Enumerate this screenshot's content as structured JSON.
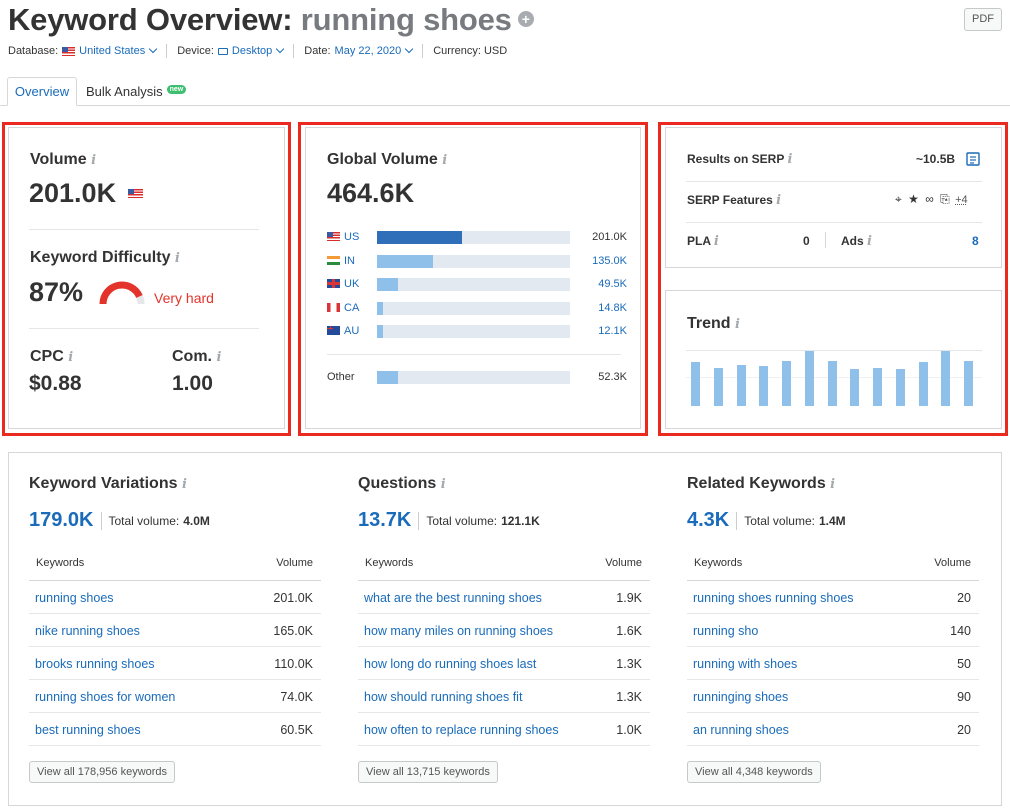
{
  "header": {
    "title_prefix": "Keyword Overview:",
    "keyword": "running shoes",
    "pdf_label": "PDF",
    "database_label": "Database:",
    "database_value": "United States",
    "device_label": "Device:",
    "device_value": "Desktop",
    "date_label": "Date:",
    "date_value": "May 22, 2020",
    "currency_label": "Currency: USD"
  },
  "tabs": {
    "overview": "Overview",
    "bulk": "Bulk Analysis",
    "bulk_badge": "new"
  },
  "volume": {
    "label": "Volume",
    "value": "201.0K",
    "kd_label": "Keyword Difficulty",
    "kd_value": "87%",
    "kd_text": "Very hard",
    "kd_fraction": 0.87,
    "cpc_label": "CPC",
    "cpc_value": "$0.88",
    "com_label": "Com.",
    "com_value": "1.00"
  },
  "global_volume": {
    "label": "Global Volume",
    "value": "464.6K",
    "countries": [
      {
        "code": "US",
        "display": "201.0K",
        "share": 0.44,
        "flag": "f-us",
        "highlight": true
      },
      {
        "code": "IN",
        "display": "135.0K",
        "share": 0.29,
        "flag": "f-in",
        "highlight": false
      },
      {
        "code": "UK",
        "display": "49.5K",
        "share": 0.11,
        "flag": "f-uk",
        "highlight": false
      },
      {
        "code": "CA",
        "display": "14.8K",
        "share": 0.03,
        "flag": "f-ca",
        "highlight": false
      },
      {
        "code": "AU",
        "display": "12.1K",
        "share": 0.03,
        "flag": "f-au",
        "highlight": false
      }
    ],
    "other_label": "Other",
    "other_display": "52.3K",
    "other_share": 0.11
  },
  "serp": {
    "results_label": "Results on SERP",
    "results_value": "~10.5B",
    "features_label": "SERP Features",
    "features_more": "+4",
    "pla_label": "PLA",
    "pla_value": "0",
    "ads_label": "Ads",
    "ads_value": "8"
  },
  "trend": {
    "label": "Trend",
    "values": [
      0.8,
      0.7,
      0.75,
      0.72,
      0.82,
      1.0,
      0.81,
      0.67,
      0.7,
      0.67,
      0.8,
      1.0,
      0.82
    ]
  },
  "sections": [
    {
      "title": "Keyword Variations",
      "count": "179.0K",
      "total_label": "Total volume:",
      "total_value": "4.0M",
      "col_keywords": "Keywords",
      "col_volume": "Volume",
      "rows": [
        {
          "keyword": "running shoes",
          "volume": "201.0K"
        },
        {
          "keyword": "nike running shoes",
          "volume": "165.0K"
        },
        {
          "keyword": "brooks running shoes",
          "volume": "110.0K"
        },
        {
          "keyword": "running shoes for women",
          "volume": "74.0K"
        },
        {
          "keyword": "best running shoes",
          "volume": "60.5K"
        }
      ],
      "view_all": "View all 178,956 keywords"
    },
    {
      "title": "Questions",
      "count": "13.7K",
      "total_label": "Total volume:",
      "total_value": "121.1K",
      "col_keywords": "Keywords",
      "col_volume": "Volume",
      "rows": [
        {
          "keyword": "what are the best running shoes",
          "volume": "1.9K"
        },
        {
          "keyword": "how many miles on running shoes",
          "volume": "1.6K"
        },
        {
          "keyword": "how long do running shoes last",
          "volume": "1.3K"
        },
        {
          "keyword": "how should running shoes fit",
          "volume": "1.3K"
        },
        {
          "keyword": "how often to replace running shoes",
          "volume": "1.0K"
        }
      ],
      "view_all": "View all 13,715 keywords"
    },
    {
      "title": "Related Keywords",
      "count": "4.3K",
      "total_label": "Total volume:",
      "total_value": "1.4M",
      "col_keywords": "Keywords",
      "col_volume": "Volume",
      "rows": [
        {
          "keyword": "running shoes running shoes",
          "volume": "20"
        },
        {
          "keyword": "running sho",
          "volume": "140"
        },
        {
          "keyword": "running with shoes",
          "volume": "50"
        },
        {
          "keyword": "runninging shoes",
          "volume": "90"
        },
        {
          "keyword": "an running shoes",
          "volume": "20"
        }
      ],
      "view_all": "View all 4,348 keywords"
    }
  ]
}
